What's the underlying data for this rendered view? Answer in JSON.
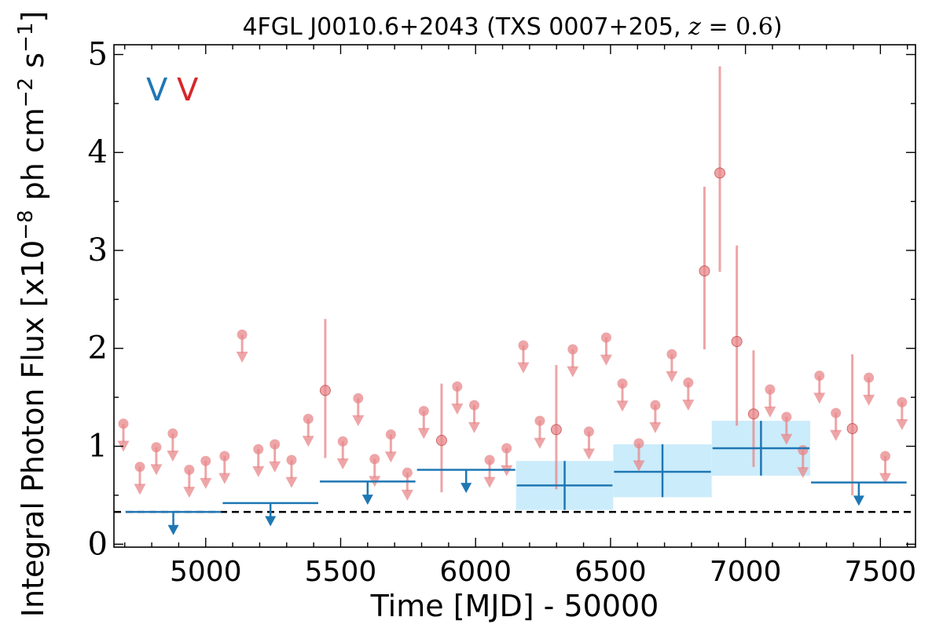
{
  "title": {
    "main": "4FGL J0010.6+2043 (TXS 0007+205, ",
    "z_symbol": "z",
    "z_eq": " = ",
    "z_value": "0.6",
    "close": ")"
  },
  "markers": [
    {
      "label": "V",
      "color": "#1f77b4"
    },
    {
      "label": "V",
      "color": "#d62728"
    }
  ],
  "colors": {
    "fine_bins": "#e8878a",
    "coarse_bins": "#1f77b4",
    "band_fill": "#cbecfb",
    "threshold_line": "#000000"
  },
  "chart_data": {
    "type": "scatter",
    "title": "4FGL J0010.6+2043 (TXS 0007+205, z = 0.6)",
    "xlabel": "Time [MJD] - 50000",
    "ylabel": {
      "prefix": "Integral Photon Flux [x10",
      "exp1": "−8",
      "mid": " ph cm",
      "exp2": "−2",
      "mid2": " s",
      "exp3": "−1",
      "suffix": "]"
    },
    "xlim": [
      4660,
      7630
    ],
    "ylim": [
      -0.03,
      5.1
    ],
    "xticks": [
      5000,
      5500,
      6000,
      6500,
      7000,
      7500
    ],
    "yticks": [
      0,
      1,
      2,
      3,
      4,
      5
    ],
    "grid": false,
    "threshold_line": 0.33,
    "series": [
      {
        "points": [
          {
            "x": 4695,
            "y": 1.23,
            "ul": true
          },
          {
            "x": 4756,
            "y": 0.79,
            "ul": true
          },
          {
            "x": 4817,
            "y": 0.99,
            "ul": true
          },
          {
            "x": 4878,
            "y": 1.13,
            "ul": true
          },
          {
            "x": 4939,
            "y": 0.76,
            "ul": true
          },
          {
            "x": 5000,
            "y": 0.85,
            "ul": true
          },
          {
            "x": 5070,
            "y": 0.9,
            "ul": true
          },
          {
            "x": 5135,
            "y": 2.14,
            "ul": true
          },
          {
            "x": 5195,
            "y": 0.97,
            "ul": true
          },
          {
            "x": 5256,
            "y": 1.02,
            "ul": true
          },
          {
            "x": 5318,
            "y": 0.86,
            "ul": true
          },
          {
            "x": 5380,
            "y": 1.28,
            "ul": true
          },
          {
            "x": 5443,
            "y": 1.57,
            "ul": false,
            "lo": 0.88,
            "hi": 2.3
          },
          {
            "x": 5508,
            "y": 1.05,
            "ul": true
          },
          {
            "x": 5565,
            "y": 1.49,
            "ul": true
          },
          {
            "x": 5626,
            "y": 0.87,
            "ul": true
          },
          {
            "x": 5686,
            "y": 1.12,
            "ul": true
          },
          {
            "x": 5747,
            "y": 0.73,
            "ul": true
          },
          {
            "x": 5808,
            "y": 1.36,
            "ul": true
          },
          {
            "x": 5874,
            "y": 1.06,
            "ul": false,
            "lo": 0.53,
            "hi": 1.64
          },
          {
            "x": 5932,
            "y": 1.61,
            "ul": true
          },
          {
            "x": 5995,
            "y": 1.42,
            "ul": true
          },
          {
            "x": 6052,
            "y": 0.86,
            "ul": true
          },
          {
            "x": 6115,
            "y": 0.98,
            "ul": true
          },
          {
            "x": 6177,
            "y": 2.03,
            "ul": true
          },
          {
            "x": 6238,
            "y": 1.26,
            "ul": true
          },
          {
            "x": 6299,
            "y": 1.17,
            "ul": false,
            "lo": 0.56,
            "hi": 1.83
          },
          {
            "x": 6360,
            "y": 1.99,
            "ul": true
          },
          {
            "x": 6420,
            "y": 1.15,
            "ul": true
          },
          {
            "x": 6484,
            "y": 2.11,
            "ul": true
          },
          {
            "x": 6544,
            "y": 1.64,
            "ul": true
          },
          {
            "x": 6605,
            "y": 1.03,
            "ul": true
          },
          {
            "x": 6666,
            "y": 1.42,
            "ul": true
          },
          {
            "x": 6727,
            "y": 1.94,
            "ul": true
          },
          {
            "x": 6788,
            "y": 1.65,
            "ul": true
          },
          {
            "x": 6848,
            "y": 2.79,
            "ul": false,
            "lo": 1.99,
            "hi": 3.65
          },
          {
            "x": 6905,
            "y": 3.79,
            "ul": false,
            "lo": 2.78,
            "hi": 4.88
          },
          {
            "x": 6968,
            "y": 2.07,
            "ul": false,
            "lo": 1.21,
            "hi": 3.05
          },
          {
            "x": 7030,
            "y": 1.33,
            "ul": false,
            "lo": 0.79,
            "hi": 1.98
          },
          {
            "x": 7091,
            "y": 1.58,
            "ul": true
          },
          {
            "x": 7152,
            "y": 1.3,
            "ul": true
          },
          {
            "x": 7213,
            "y": 0.96,
            "ul": true
          },
          {
            "x": 7274,
            "y": 1.72,
            "ul": true
          },
          {
            "x": 7335,
            "y": 1.34,
            "ul": true
          },
          {
            "x": 7396,
            "y": 1.18,
            "ul": false,
            "lo": 0.5,
            "hi": 1.94
          },
          {
            "x": 7457,
            "y": 1.7,
            "ul": true
          },
          {
            "x": 7518,
            "y": 0.9,
            "ul": true
          },
          {
            "x": 7580,
            "y": 1.45,
            "ul": true
          }
        ]
      },
      {
        "bins": [
          {
            "x0": 4700,
            "x1": 5060,
            "y": 0.33,
            "ul": true
          },
          {
            "x0": 5060,
            "x1": 5420,
            "y": 0.42,
            "ul": true
          },
          {
            "x0": 5420,
            "x1": 5780,
            "y": 0.64,
            "ul": true
          },
          {
            "x0": 5780,
            "x1": 6150,
            "y": 0.76,
            "ul": true
          },
          {
            "x0": 6150,
            "x1": 6510,
            "y": 0.6,
            "ul": false,
            "lo": 0.35,
            "hi": 0.85
          },
          {
            "x0": 6510,
            "x1": 6875,
            "y": 0.74,
            "ul": false,
            "lo": 0.48,
            "hi": 1.02
          },
          {
            "x0": 6875,
            "x1": 7240,
            "y": 0.98,
            "ul": false,
            "lo": 0.7,
            "hi": 1.26
          },
          {
            "x0": 7240,
            "x1": 7600,
            "y": 0.63,
            "ul": true
          }
        ]
      }
    ]
  }
}
